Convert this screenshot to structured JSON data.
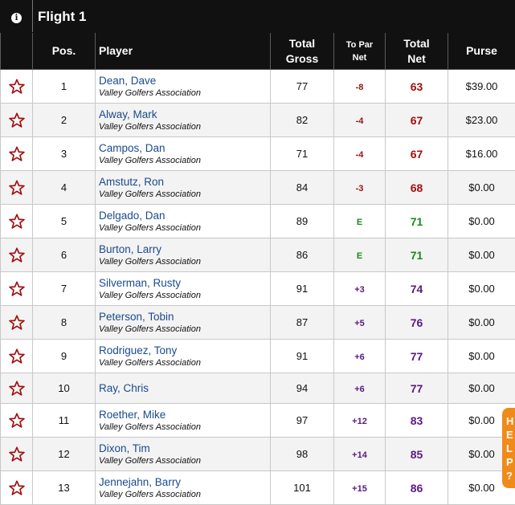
{
  "flight": {
    "title": "Flight 1"
  },
  "headers": {
    "pos": "Pos.",
    "player": "Player",
    "total_gross_1": "Total",
    "total_gross_2": "Gross",
    "to_par_1": "To Par",
    "to_par_2": "Net",
    "total_net_1": "Total",
    "total_net_2": "Net",
    "purse": "Purse"
  },
  "colors": {
    "red": "#a01010",
    "green": "#1a8a1a",
    "purple": "#5a1a80",
    "star": "#a01010"
  },
  "rows": [
    {
      "pos": "1",
      "name": "Dean, Dave",
      "club": "Valley Golfers Association",
      "gross": "77",
      "topar": "-8",
      "net": "63",
      "purse": "$39.00",
      "tone": "red"
    },
    {
      "pos": "2",
      "name": "Alway, Mark",
      "club": "Valley Golfers Association",
      "gross": "82",
      "topar": "-4",
      "net": "67",
      "purse": "$23.00",
      "tone": "red"
    },
    {
      "pos": "3",
      "name": "Campos, Dan",
      "club": "Valley Golfers Association",
      "gross": "71",
      "topar": "-4",
      "net": "67",
      "purse": "$16.00",
      "tone": "red"
    },
    {
      "pos": "4",
      "name": "Amstutz, Ron",
      "club": "Valley Golfers Association",
      "gross": "84",
      "topar": "-3",
      "net": "68",
      "purse": "$0.00",
      "tone": "red"
    },
    {
      "pos": "5",
      "name": "Delgado, Dan",
      "club": "Valley Golfers Association",
      "gross": "89",
      "topar": "E",
      "net": "71",
      "purse": "$0.00",
      "tone": "green"
    },
    {
      "pos": "6",
      "name": "Burton, Larry",
      "club": "Valley Golfers Association",
      "gross": "86",
      "topar": "E",
      "net": "71",
      "purse": "$0.00",
      "tone": "green"
    },
    {
      "pos": "7",
      "name": "Silverman, Rusty",
      "club": "Valley Golfers Association",
      "gross": "91",
      "topar": "+3",
      "net": "74",
      "purse": "$0.00",
      "tone": "purple"
    },
    {
      "pos": "8",
      "name": "Peterson, Tobin",
      "club": "Valley Golfers Association",
      "gross": "87",
      "topar": "+5",
      "net": "76",
      "purse": "$0.00",
      "tone": "purple"
    },
    {
      "pos": "9",
      "name": "Rodriguez, Tony",
      "club": "Valley Golfers Association",
      "gross": "91",
      "topar": "+6",
      "net": "77",
      "purse": "$0.00",
      "tone": "purple"
    },
    {
      "pos": "10",
      "name": "Ray, Chris",
      "club": "",
      "gross": "94",
      "topar": "+6",
      "net": "77",
      "purse": "$0.00",
      "tone": "purple"
    },
    {
      "pos": "11",
      "name": "Roether, Mike",
      "club": "Valley Golfers Association",
      "gross": "97",
      "topar": "+12",
      "net": "83",
      "purse": "$0.00",
      "tone": "purple"
    },
    {
      "pos": "12",
      "name": "Dixon, Tim",
      "club": "Valley Golfers Association",
      "gross": "98",
      "topar": "+14",
      "net": "85",
      "purse": "$0.00",
      "tone": "purple"
    },
    {
      "pos": "13",
      "name": "Jennejahn, Barry",
      "club": "Valley Golfers Association",
      "gross": "101",
      "topar": "+15",
      "net": "86",
      "purse": "$0.00",
      "tone": "purple"
    }
  ],
  "help_tab": {
    "letters": [
      "H",
      "E",
      "L",
      "P",
      "?"
    ]
  }
}
